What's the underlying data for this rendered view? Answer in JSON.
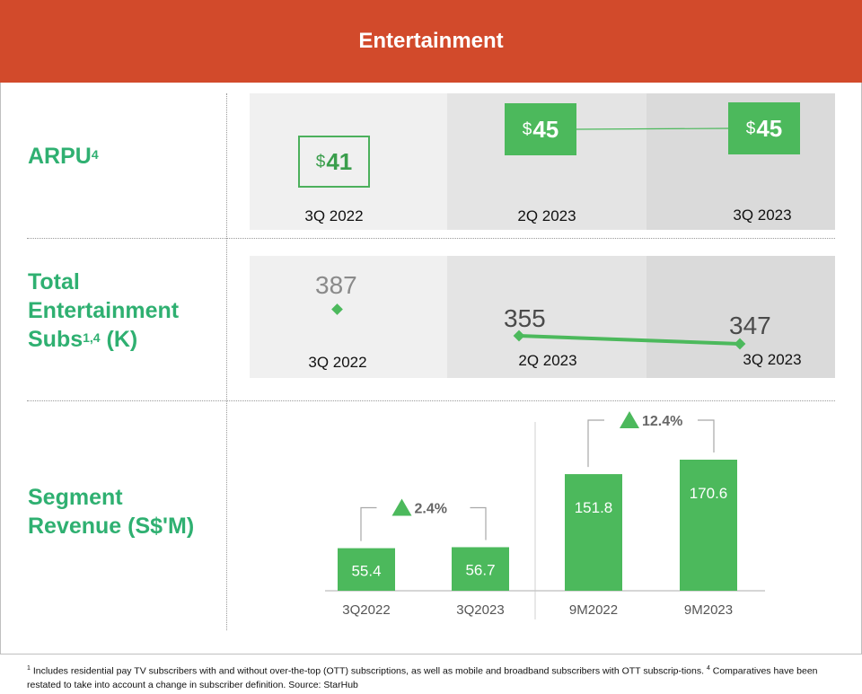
{
  "header": {
    "title": "Entertainment"
  },
  "rows": {
    "arpu": {
      "label": "ARPU",
      "sup": "4"
    },
    "subs": {
      "label_line1": "Total",
      "label_line2": "Entertainment",
      "label_line3": "Subs",
      "sup": "1,4",
      "label_suffix": " (K)"
    },
    "revenue": {
      "label_line1": "Segment",
      "label_line2": "Revenue (S$'M)"
    }
  },
  "arpu": {
    "currency": "$",
    "items": [
      {
        "period": "3Q 2022",
        "value": "41"
      },
      {
        "period": "2Q 2023",
        "value": "45"
      },
      {
        "period": "3Q 2023",
        "value": "45"
      }
    ]
  },
  "subs": {
    "items": [
      {
        "period": "3Q 2022",
        "value": "387"
      },
      {
        "period": "2Q 2023",
        "value": "355"
      },
      {
        "period": "3Q 2023",
        "value": "347"
      }
    ]
  },
  "chart_data": {
    "type": "bar",
    "title": "",
    "xlabel": "",
    "ylabel": "",
    "categories": [
      "3Q2022",
      "3Q2023",
      "9M2022",
      "9M2023"
    ],
    "values": [
      55.4,
      56.7,
      151.8,
      170.6
    ],
    "value_labels": [
      "55.4",
      "56.7",
      "151.8",
      "170.6"
    ],
    "growth": [
      {
        "from": "3Q2022",
        "to": "3Q2023",
        "label": "2.4%"
      },
      {
        "from": "9M2022",
        "to": "9M2023",
        "label": "12.4%"
      }
    ],
    "ylim": [
      0,
      170.6
    ],
    "grid": false,
    "colors": {
      "bar": "#4cb95c",
      "bar_text": "#ffffff",
      "arrow": "#4cb95c",
      "growth_text": "#666666"
    }
  },
  "footnote": {
    "sup1": "1",
    "text1": " Includes residential pay TV subscribers with and without over-the-top (OTT) subscriptions, as well as mobile and broadband subscribers with OTT subscrip-tions. ",
    "sup2": "4",
    "text2": " Comparatives have been restated to take into account a change in subscriber definition. Source: StarHub"
  },
  "colors": {
    "banner": "#d24a2b",
    "label_green": "#2fb071",
    "accent_green": "#4cb95c"
  }
}
